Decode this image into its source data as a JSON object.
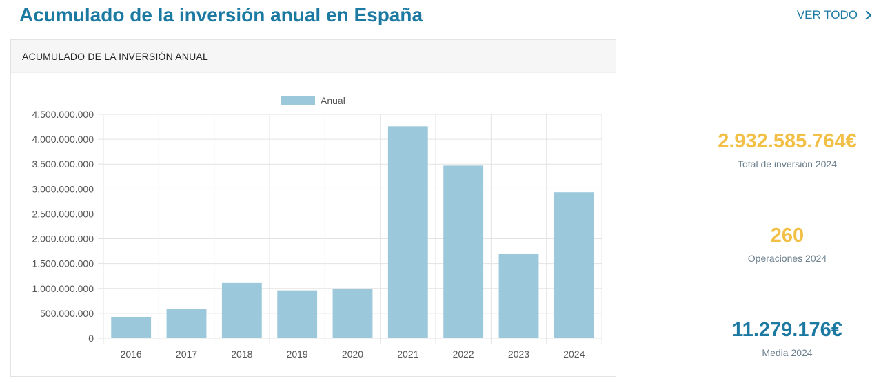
{
  "header": {
    "title": "Acumulado de la inversión anual en España",
    "see_all_label": "VER TODO"
  },
  "card": {
    "title": "ACUMULADO DE LA INVERSIÓN ANUAL"
  },
  "colors": {
    "bar": "#9bc8da",
    "title": "#1c7aa2",
    "highlight": "#f2c047",
    "grid": "#e3e3e3",
    "tick_text": "#555555"
  },
  "chart_data": {
    "type": "bar",
    "categories": [
      "2016",
      "2017",
      "2018",
      "2019",
      "2020",
      "2021",
      "2022",
      "2023",
      "2024"
    ],
    "series": [
      {
        "name": "Anual",
        "values": [
          430000000,
          590000000,
          1110000000,
          960000000,
          990000000,
          4260000000,
          3470000000,
          1690000000,
          2932585764
        ]
      }
    ],
    "ylim": [
      0,
      4500000000
    ],
    "yticks": [
      0,
      500000000,
      1000000000,
      1500000000,
      2000000000,
      2500000000,
      3000000000,
      3500000000,
      4000000000,
      4500000000
    ],
    "ytick_labels": [
      "0",
      "500.000.000",
      "1.000.000.000",
      "1.500.000.000",
      "2.000.000.000",
      "2.500.000.000",
      "3.000.000.000",
      "3.500.000.000",
      "4.000.000.000",
      "4.500.000.000"
    ],
    "legend_position": "top",
    "grid": true
  },
  "kpis": [
    {
      "value": "2.932.585.764€",
      "label": "Total de inversión 2024",
      "color": "#f2c047"
    },
    {
      "value": "260",
      "label": "Operaciones 2024",
      "color": "#f2c047"
    },
    {
      "value": "11.279.176€",
      "label": "Media 2024",
      "color": "#1c7aa2"
    }
  ]
}
